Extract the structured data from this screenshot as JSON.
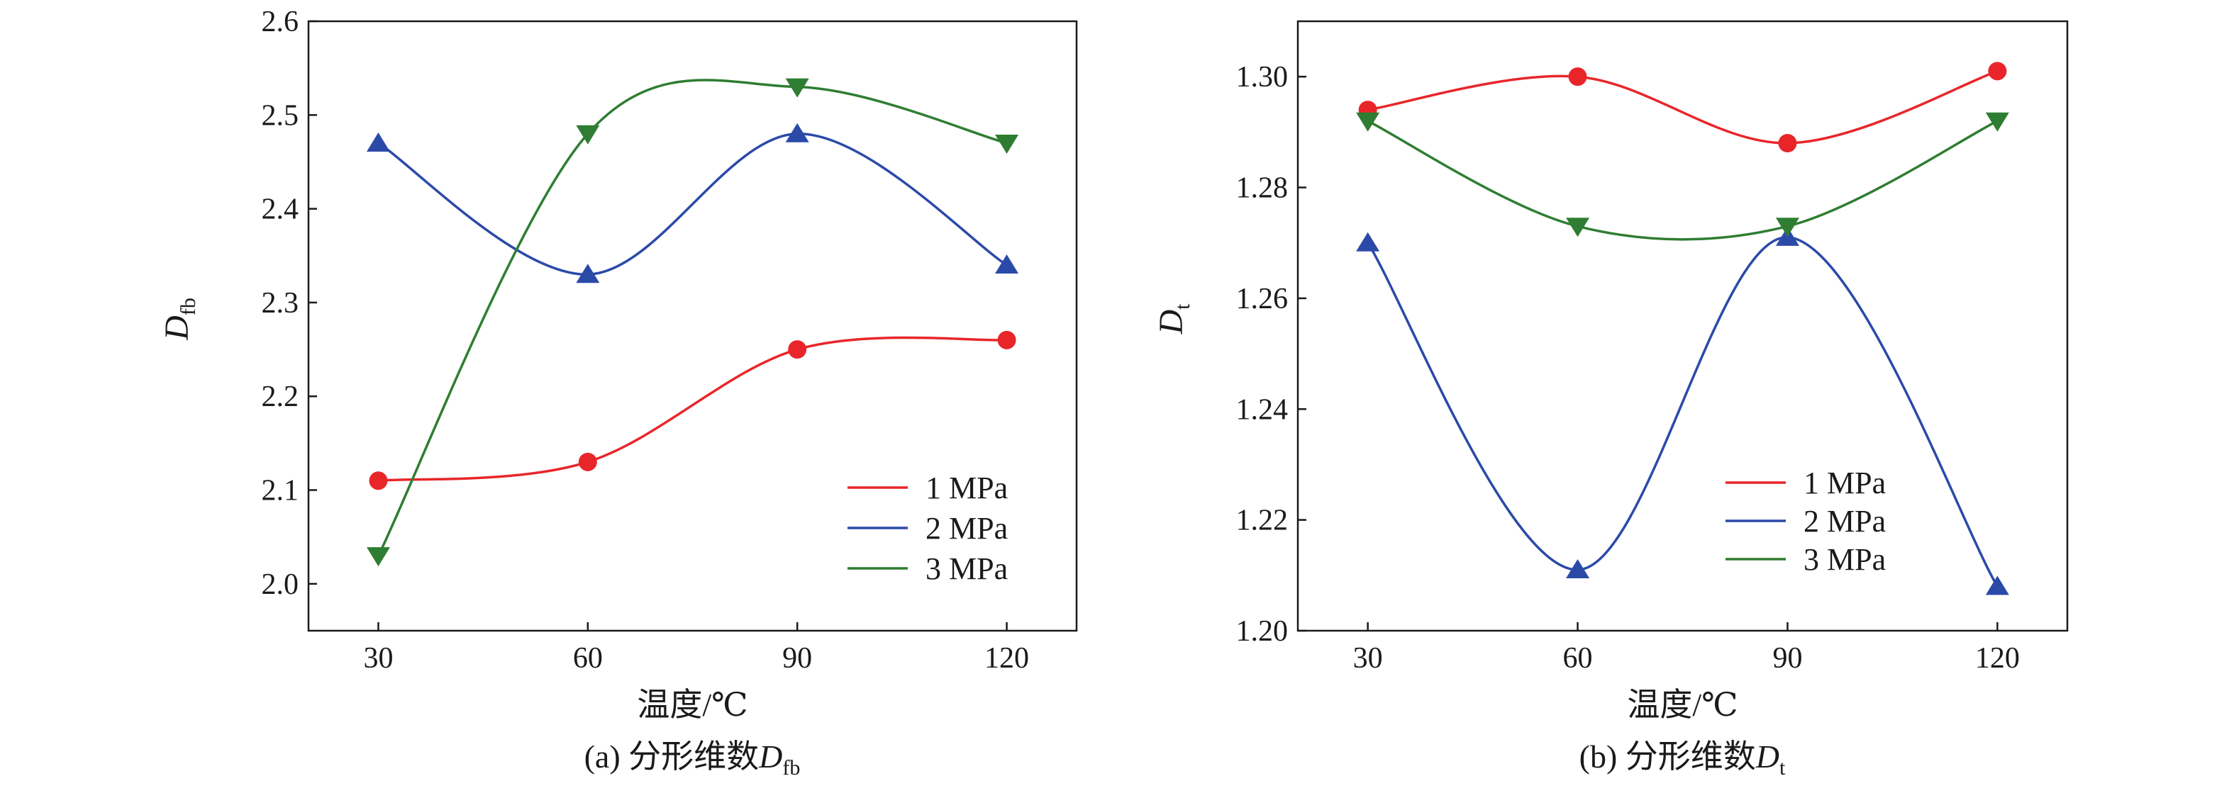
{
  "chart_data": [
    {
      "type": "line",
      "caption_prefix": "(a) 分形维数",
      "caption_var": "D",
      "caption_sub": "fb",
      "ylabel_var": "D",
      "ylabel_sub": "fb",
      "xlabel": "温度/℃",
      "x": [
        30,
        60,
        90,
        120
      ],
      "xlim": [
        20,
        130
      ],
      "ylim": [
        1.95,
        2.6
      ],
      "xticks": [
        30,
        60,
        90,
        120
      ],
      "yticks": [
        "2.0",
        "2.1",
        "2.2",
        "2.3",
        "2.4",
        "2.5",
        "2.6"
      ],
      "legend_position": "bottom-right",
      "series": [
        {
          "name": "1 MPa",
          "color": "#e8262a",
          "marker": "circle",
          "values": [
            2.11,
            2.13,
            2.25,
            2.26
          ]
        },
        {
          "name": "2 MPa",
          "color": "#2b4aa8",
          "marker": "triangle-up",
          "values": [
            2.47,
            2.33,
            2.48,
            2.34
          ]
        },
        {
          "name": "3 MPa",
          "color": "#2f7d32",
          "marker": "triangle-down",
          "values": [
            2.03,
            2.48,
            2.53,
            2.47
          ]
        }
      ]
    },
    {
      "type": "line",
      "caption_prefix": "(b) 分形维数",
      "caption_var": "D",
      "caption_sub": "t",
      "ylabel_var": "D",
      "ylabel_sub": "t",
      "xlabel": "温度/℃",
      "x": [
        30,
        60,
        90,
        120
      ],
      "xlim": [
        20,
        130
      ],
      "ylim": [
        1.2,
        1.31
      ],
      "xticks": [
        30,
        60,
        90,
        120
      ],
      "yticks": [
        "1.20",
        "1.22",
        "1.24",
        "1.26",
        "1.28",
        "1.30"
      ],
      "legend_position": "bottom-right",
      "series": [
        {
          "name": "1 MPa",
          "color": "#e8262a",
          "marker": "circle",
          "values": [
            1.294,
            1.3,
            1.288,
            1.301
          ]
        },
        {
          "name": "2 MPa",
          "color": "#2b4aa8",
          "marker": "triangle-up",
          "values": [
            1.27,
            1.211,
            1.271,
            1.208
          ]
        },
        {
          "name": "3 MPa",
          "color": "#2f7d32",
          "marker": "triangle-down",
          "values": [
            1.292,
            1.273,
            1.273,
            1.292
          ]
        }
      ]
    }
  ]
}
